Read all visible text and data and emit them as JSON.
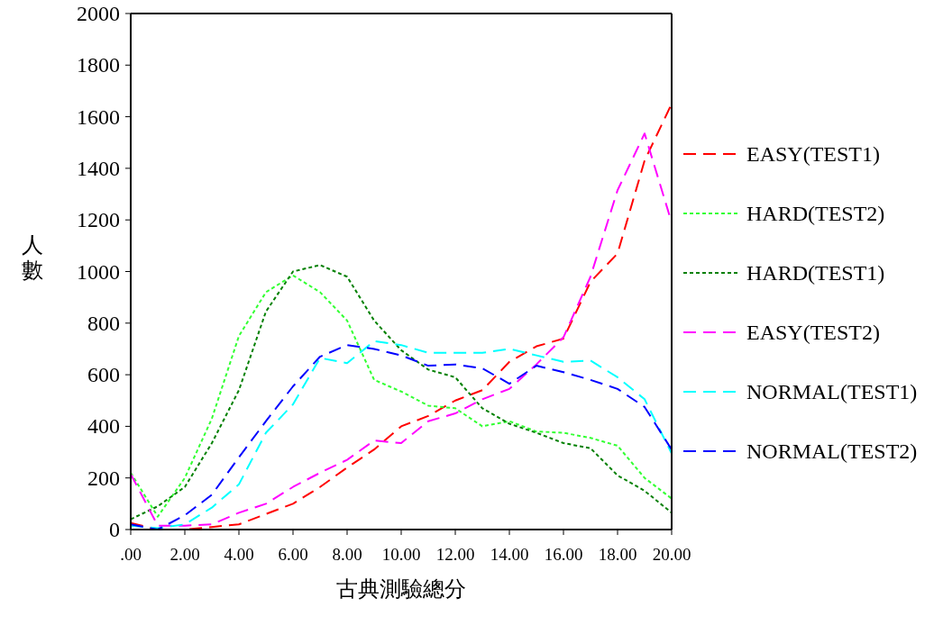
{
  "chart_data": {
    "type": "line",
    "xlabel": "古典測驗總分",
    "ylabel": "人數",
    "x": [
      0,
      1,
      2,
      3,
      4,
      5,
      6,
      7,
      8,
      9,
      10,
      11,
      12,
      13,
      14,
      15,
      16,
      17,
      18,
      19,
      20
    ],
    "xlim": [
      0,
      20
    ],
    "xticks": [
      {
        "value": 0,
        "label": ".00"
      },
      {
        "value": 2,
        "label": "2.00"
      },
      {
        "value": 4,
        "label": "4.00"
      },
      {
        "value": 6,
        "label": "6.00"
      },
      {
        "value": 8,
        "label": "8.00"
      },
      {
        "value": 10,
        "label": "10.00"
      },
      {
        "value": 12,
        "label": "12.00"
      },
      {
        "value": 14,
        "label": "14.00"
      },
      {
        "value": 16,
        "label": "16.00"
      },
      {
        "value": 18,
        "label": "18.00"
      },
      {
        "value": 20,
        "label": "20.00"
      }
    ],
    "ylim": [
      0,
      2000
    ],
    "yticks": [
      0,
      200,
      400,
      600,
      800,
      1000,
      1200,
      1400,
      1600,
      1800,
      2000
    ],
    "grid": false,
    "legend": "right",
    "marker": "none",
    "series": [
      {
        "name": "EASY(TEST1)",
        "color": "#ff0000",
        "line_style": "dashed",
        "values": [
          25,
          0,
          0,
          10,
          20,
          60,
          100,
          165,
          240,
          310,
          400,
          440,
          500,
          540,
          650,
          710,
          740,
          960,
          1070,
          1430,
          1650
        ]
      },
      {
        "name": "HARD(TEST2)",
        "color": "#33ff33",
        "line_style": "dotted",
        "values": [
          220,
          50,
          200,
          430,
          750,
          920,
          985,
          920,
          810,
          580,
          535,
          480,
          470,
          400,
          420,
          380,
          375,
          355,
          325,
          200,
          120
        ]
      },
      {
        "name": "HARD(TEST1)",
        "color": "#008000",
        "line_style": "dotted",
        "values": [
          40,
          90,
          165,
          335,
          540,
          845,
          1000,
          1025,
          980,
          810,
          695,
          620,
          590,
          470,
          410,
          375,
          335,
          315,
          210,
          150,
          65
        ]
      },
      {
        "name": "EASY(TEST2)",
        "color": "#ff00ff",
        "line_style": "dashed",
        "values": [
          215,
          15,
          15,
          20,
          65,
          100,
          165,
          220,
          270,
          345,
          335,
          420,
          450,
          505,
          545,
          640,
          745,
          980,
          1315,
          1535,
          1190
        ]
      },
      {
        "name": "NORMAL(TEST1)",
        "color": "#00ffff",
        "line_style": "dashed",
        "values": [
          15,
          5,
          20,
          85,
          175,
          375,
          485,
          665,
          645,
          730,
          715,
          685,
          685,
          685,
          700,
          675,
          650,
          655,
          590,
          505,
          295
        ]
      },
      {
        "name": "NORMAL(TEST2)",
        "color": "#0000ff",
        "line_style": "dashed",
        "values": [
          20,
          0,
          55,
          135,
          280,
          420,
          555,
          670,
          715,
          700,
          675,
          635,
          640,
          625,
          565,
          635,
          610,
          580,
          545,
          475,
          310
        ]
      }
    ]
  }
}
